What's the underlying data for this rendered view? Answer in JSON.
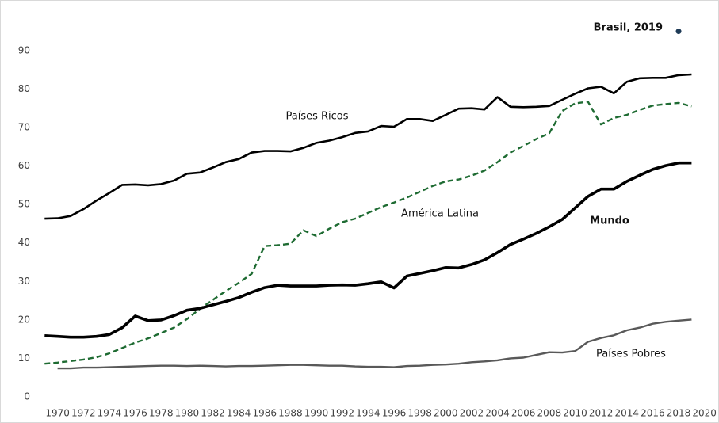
{
  "chart_data": {
    "type": "line",
    "x": [
      1969,
      1970,
      1971,
      1972,
      1973,
      1974,
      1975,
      1976,
      1977,
      1978,
      1979,
      1980,
      1981,
      1982,
      1983,
      1984,
      1985,
      1986,
      1987,
      1988,
      1989,
      1990,
      1991,
      1992,
      1993,
      1994,
      1995,
      1996,
      1997,
      1998,
      1999,
      2000,
      2001,
      2002,
      2003,
      2004,
      2005,
      2006,
      2007,
      2008,
      2009,
      2010,
      2011,
      2012,
      2013,
      2014,
      2015,
      2016,
      2017,
      2018,
      2019
    ],
    "series": [
      {
        "name": "Países Ricos",
        "color": "#000000",
        "values": [
          46.3,
          46.4,
          47,
          48.8,
          51,
          53,
          55.1,
          55.2,
          55,
          55.3,
          56.2,
          58,
          58.3,
          59.6,
          61,
          61.8,
          63.5,
          63.9,
          63.9,
          63.8,
          64.7,
          66,
          66.6,
          67.5,
          68.6,
          69,
          70.4,
          70.2,
          72.2,
          72.2,
          71.7,
          73.3,
          74.9,
          75,
          74.7,
          77.9,
          75.4,
          75.3,
          75.4,
          75.6,
          77.2,
          78.8,
          80.2,
          80.6,
          78.9,
          81.9,
          82.8,
          82.9,
          82.9,
          83.6,
          83.8
        ]
      },
      {
        "name": "América Latina",
        "color": "#1e6b32",
        "values": [
          8.6,
          8.9,
          9.3,
          9.7,
          10.3,
          11.3,
          12.7,
          14.1,
          15.2,
          16.6,
          18,
          20.2,
          22.9,
          25.2,
          27.5,
          29.6,
          32,
          39.2,
          39.4,
          39.8,
          43.3,
          41.8,
          43.7,
          45.4,
          46.3,
          47.8,
          49.3,
          50.5,
          51.8,
          53.3,
          54.8,
          56,
          56.5,
          57.5,
          58.8,
          61,
          63.5,
          65.2,
          67,
          68.5,
          74.3,
          76.3,
          76.7,
          70.8,
          72.5,
          73.3,
          74.6,
          75.7,
          76.1,
          76.4,
          75.5
        ]
      },
      {
        "name": "Mundo",
        "color": "#000000",
        "values": [
          15.9,
          15.7,
          15.5,
          15.5,
          15.7,
          16.2,
          18,
          21,
          19.8,
          20,
          21.1,
          22.5,
          23,
          23.9,
          24.8,
          25.8,
          27.2,
          28.4,
          29,
          28.8,
          28.8,
          28.8,
          29,
          29.1,
          29,
          29.4,
          29.9,
          28.3,
          31.4,
          32.1,
          32.8,
          33.6,
          33.5,
          34.4,
          35.6,
          37.5,
          39.6,
          41,
          42.5,
          44.2,
          46.1,
          49.1,
          52.1,
          54,
          54,
          56,
          57.6,
          59.1,
          60.1,
          60.8,
          60.8
        ]
      },
      {
        "name": "Países Pobres",
        "color": "#595959",
        "values": [
          null,
          7.4,
          7.4,
          7.6,
          7.6,
          7.7,
          7.8,
          7.9,
          8,
          8.1,
          8.1,
          8,
          8.1,
          8,
          7.9,
          8,
          8,
          8.1,
          8.2,
          8.3,
          8.3,
          8.2,
          8.1,
          8.1,
          7.9,
          7.8,
          7.8,
          7.7,
          8,
          8.1,
          8.3,
          8.4,
          8.6,
          9,
          9.2,
          9.5,
          10,
          10.2,
          10.9,
          11.6,
          11.5,
          11.9,
          14.3,
          15.3,
          16,
          17.3,
          18,
          19,
          19.5,
          19.8,
          20.1
        ]
      }
    ],
    "point": {
      "label": "Brasil, 2019",
      "x": 2018,
      "y": 95,
      "color": "#1f3b57"
    },
    "xlim": [
      1968,
      2021
    ],
    "xticks": [
      1970,
      1972,
      1974,
      1976,
      1978,
      1980,
      1982,
      1984,
      1986,
      1988,
      1990,
      1992,
      1994,
      1996,
      1998,
      2000,
      2002,
      2004,
      2006,
      2008,
      2010,
      2012,
      2014,
      2016,
      2018,
      2020
    ],
    "ylim": [
      0,
      98
    ],
    "yticks": [
      0,
      10,
      20,
      30,
      40,
      50,
      60,
      70,
      80,
      90
    ]
  }
}
